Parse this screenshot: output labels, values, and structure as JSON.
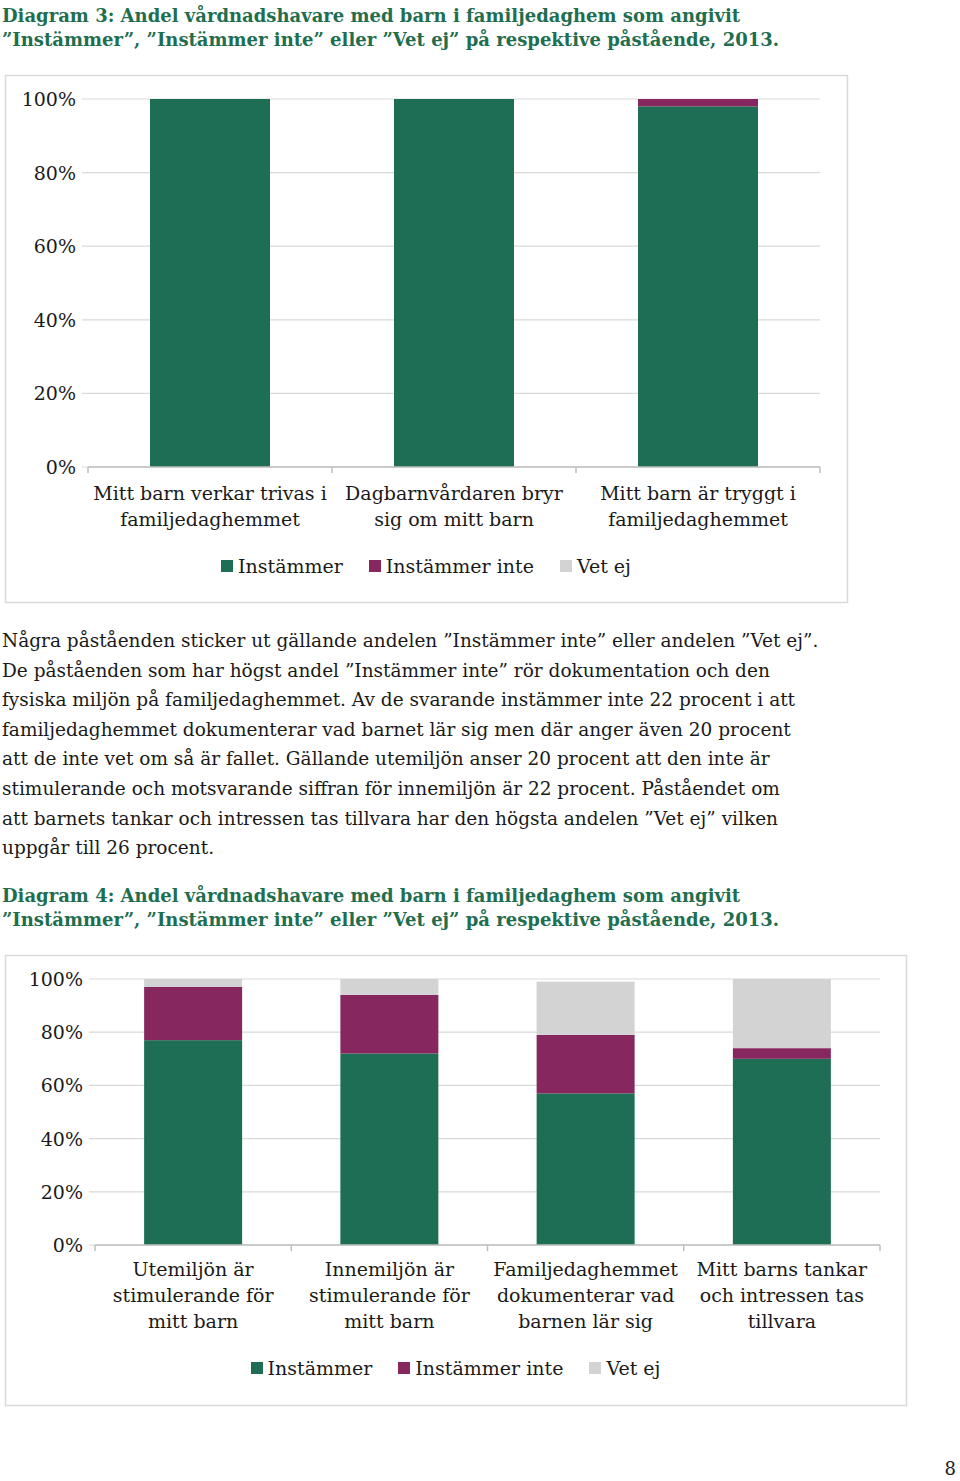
{
  "chart_data": [
    {
      "type": "bar",
      "title": "Diagram 3: Andel vårdnadshavare med barn i familjedaghem som angivit ”Instämmer”, ”Instämmer inte” eller ”Vet ej” på respektive påstående, 2013.",
      "categories": [
        "Mitt barn verkar trivas i familjedaghemmet",
        "Dagbarnvårdaren bryr sig om mitt barn",
        "Mitt barn är tryggt i familjedaghemmet"
      ],
      "series": [
        {
          "name": "Instämmer",
          "color": "#1d6e55",
          "values": [
            100,
            100,
            98
          ]
        },
        {
          "name": "Instämmer inte",
          "color": "#86285f",
          "values": [
            0,
            0,
            2
          ]
        },
        {
          "name": "Vet ej",
          "color": "#d3d3d3",
          "values": [
            0,
            0,
            0
          ]
        }
      ],
      "stacked": true,
      "ylim": [
        0,
        100
      ],
      "yticks": [
        {
          "value": 0,
          "label": "0%"
        },
        {
          "value": 20,
          "label": "20%"
        },
        {
          "value": 40,
          "label": "40%"
        },
        {
          "value": 60,
          "label": "60%"
        },
        {
          "value": 80,
          "label": "80%"
        },
        {
          "value": 100,
          "label": "100%"
        }
      ],
      "grid": true,
      "legend": "bottom"
    },
    {
      "type": "bar",
      "title": "Diagram 4: Andel vårdnadshavare med barn i familjedaghem som angivit ”Instämmer”, ”Instämmer inte” eller ”Vet ej” på respektive påstående, 2013.",
      "categories": [
        "Utemiljön är stimulerande för mitt barn",
        "Innemiljön är stimulerande för mitt barn",
        "Familjedaghemmet dokumenterar vad barnen lär sig",
        "Mitt barns tankar och intressen tas tillvara"
      ],
      "series": [
        {
          "name": "Instämmer",
          "color": "#1d6e55",
          "values": [
            77,
            72,
            57,
            70
          ]
        },
        {
          "name": "Instämmer inte",
          "color": "#86285f",
          "values": [
            20,
            22,
            22,
            4
          ]
        },
        {
          "name": "Vet ej",
          "color": "#d3d3d3",
          "values": [
            3,
            6,
            20,
            26
          ]
        }
      ],
      "stacked": true,
      "ylim": [
        0,
        100
      ],
      "yticks": [
        {
          "value": 0,
          "label": "0%"
        },
        {
          "value": 20,
          "label": "20%"
        },
        {
          "value": 40,
          "label": "40%"
        },
        {
          "value": 60,
          "label": "60%"
        },
        {
          "value": 80,
          "label": "80%"
        },
        {
          "value": 100,
          "label": "100%"
        }
      ],
      "grid": true,
      "legend": "bottom"
    }
  ],
  "text": {
    "paragraph": [
      "Några påståenden sticker ut gällande andelen ”Instämmer inte” eller andelen ”Vet ej”.",
      "De påståenden som har högst andel ”Instämmer inte” rör dokumentation och den",
      "fysiska miljön på familjedaghemmet. Av de svarande instämmer inte 22 procent i att",
      "familjedaghemmet dokumenterar vad barnet lär sig men där anger även 20 procent",
      "att de inte vet om så är fallet. Gällande utemiljön anser 20 procent att den inte är",
      "stimulerande och motsvarande siffran för innemiljön är 22 procent. Påståendet om",
      "att barnets tankar och intressen tas tillvara har den högsta andelen ”Vet ej” vilken",
      "uppgår till 26 procent."
    ],
    "page_number": "8"
  }
}
